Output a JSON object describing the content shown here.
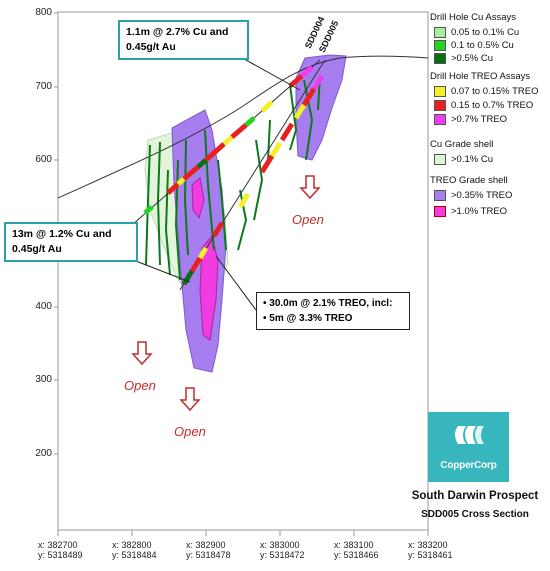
{
  "y_axis_ticks": [
    "800",
    "700",
    "600",
    "500",
    "400",
    "300",
    "200"
  ],
  "x_axis_ticks": [
    {
      "x": "x: 382700",
      "y": "y: 5318489"
    },
    {
      "x": "x: 382800",
      "y": "y: 5318484"
    },
    {
      "x": "x: 382900",
      "y": "y: 5318478"
    },
    {
      "x": "x: 383000",
      "y": "y: 5318472"
    },
    {
      "x": "x: 383100",
      "y": "y: 5318466"
    },
    {
      "x": "x: 383200",
      "y": "y: 5318461"
    }
  ],
  "drill_holes": [
    "SDD004",
    "SDD005"
  ],
  "callouts": {
    "top": {
      "line1": "1.1m @ 2.7% Cu and",
      "line2": "0.45g/t Au"
    },
    "left": {
      "line1": "13m @ 1.2% Cu and",
      "line2": "0.45g/t Au"
    },
    "right": {
      "line1": "30.0m @ 2.1% TREO, incl:",
      "line2": "5m @ 3.3% TREO"
    }
  },
  "open_label": "Open",
  "legend": {
    "cu_title": "Drill Hole Cu Assays",
    "cu_items": [
      {
        "label": "0.05 to 0.1% Cu",
        "color": "#a8f0a0"
      },
      {
        "label": "0.1 to 0.5% Cu",
        "color": "#22d422"
      },
      {
        "label": ">0.5% Cu",
        "color": "#0a6e12"
      }
    ],
    "treo_title": "Drill Hole TREO Assays",
    "treo_items": [
      {
        "label": "0.07 to 0.15% TREO",
        "color": "#f4f02a"
      },
      {
        "label": "0.15 to 0.7% TREO",
        "color": "#e82020"
      },
      {
        "label": ">0.7% TREO",
        "color": "#f03cf0"
      }
    ],
    "cu_shell_title": "Cu Grade shell",
    "cu_shell_items": [
      {
        "label": ">0.1% Cu",
        "color": "#dff5d8"
      }
    ],
    "treo_shell_title": "TREO Grade shell",
    "treo_shell_items": [
      {
        "label": ">0.35% TREO",
        "color": "#a77ef0"
      },
      {
        "label": ">1.0% TREO",
        "color": "#f03ce0"
      }
    ]
  },
  "logo_text": "CopperCorp",
  "title_line1": "South Darwin Prospect",
  "title_line2": "SDD005 Cross Section",
  "colors": {
    "accent": "#2aa1a8",
    "open_arrow": "#c42a2a",
    "frame": "#999999"
  }
}
